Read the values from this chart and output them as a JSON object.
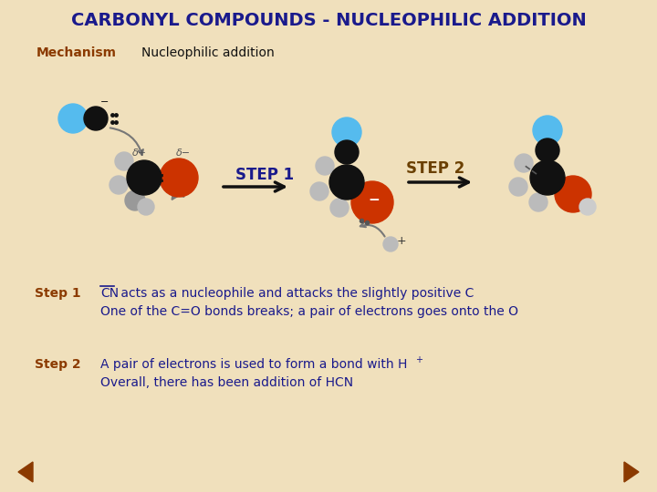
{
  "bg_color": "#f0e0bc",
  "title": "CARBONYL COMPOUNDS - NUCLEOPHILIC ADDITION",
  "title_color": "#1a1a8c",
  "title_fontsize": 14,
  "mechanism_label": "Mechanism",
  "mechanism_color": "#8b3a00",
  "nucleophilic_label": "Nucleophilic addition",
  "nucleophilic_color": "#111111",
  "step1_label": "STEP 1",
  "step2_label": "STEP 2",
  "step_label_color": "#1a1a8c",
  "step2_label_color": "#6b4000",
  "step_text_color": "#8b3a00",
  "body_text_color": "#1a1a8c",
  "step1_heading": "Step 1",
  "step2_heading": "Step 2",
  "step1_line2": "One of the C=O bonds breaks; a pair of electrons goes onto the O",
  "step2_line1": "A pair of electrons is used to form a bond with H",
  "step2_line2": "Overall, there has been addition of HCN",
  "arrow_color": "#333333",
  "nav_arrow_color": "#8b3a00",
  "delta_plus": "δ+",
  "delta_minus": "δ−",
  "minus_sign": "−",
  "plus_sign": "+"
}
